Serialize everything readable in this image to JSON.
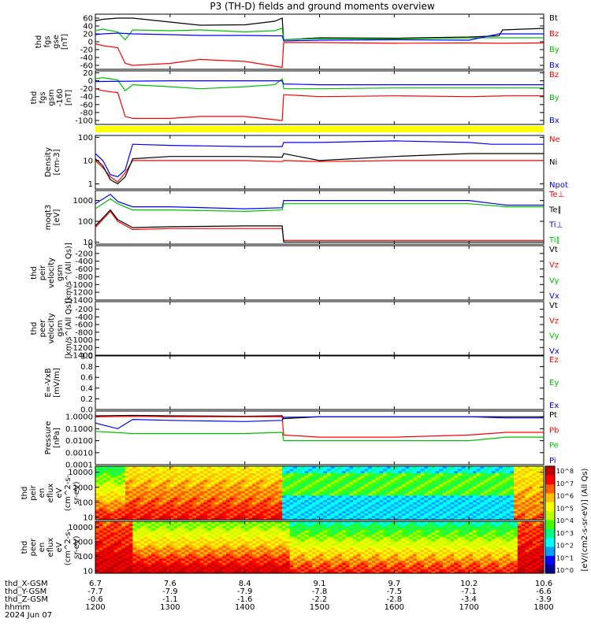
{
  "title": "P3 (TH-D) fields and ground moments overview",
  "footer": {
    "row_labels": [
      "thd_X-GSM",
      "thd_Y-GSM",
      "thd_Z-GSM",
      "hhmm",
      "2024 Jun 07"
    ],
    "x_gsm": [
      "6.7",
      "7.6",
      "8.4",
      "9.1",
      "9.7",
      "10.2",
      "10.6"
    ],
    "y_gsm": [
      "-7.7",
      "-7.9",
      "-7.9",
      "-7.8",
      "-7.5",
      "-7.1",
      "-6.6"
    ],
    "z_gsm": [
      "-0.6",
      "-1.1",
      "-1.6",
      "-2.2",
      "-2.8",
      "-3.4",
      "-3.9"
    ],
    "hhmm": [
      "1200",
      "1300",
      "1400",
      "1500",
      "1600",
      "1700",
      "1800"
    ]
  },
  "colorbar": {
    "label": "[eV/(cm2-s-sr-eV)] (All Qs)",
    "ticks": [
      "10^8",
      "10^7",
      "10^6",
      "10^5",
      "10^4",
      "10^3",
      "10^2",
      "10^1",
      "10^0"
    ],
    "colors": [
      "#000090",
      "#0000ff",
      "#00a0ff",
      "#00ffff",
      "#00ff80",
      "#40ff00",
      "#c0ff00",
      "#ffff00",
      "#ffc000",
      "#ff6000",
      "#ff0000",
      "#c00000"
    ]
  },
  "chart_data": [
    {
      "type": "line",
      "panel": "fgs_gse",
      "ylabel": [
        "thd",
        "fgs",
        "gse",
        "[nT]"
      ],
      "yticks": [
        "60",
        "40",
        "20",
        "0",
        "-20",
        "-40",
        "-60"
      ],
      "ylim": [
        -70,
        70
      ],
      "xlim": [
        1200,
        1800
      ],
      "series": [
        {
          "name": "Bt",
          "color": "#000000",
          "x": [
            1200,
            1210,
            1230,
            1250,
            1300,
            1340,
            1400,
            1440,
            1450,
            1452,
            1500,
            1600,
            1700,
            1740,
            1745,
            1800
          ],
          "y": [
            53,
            57,
            60,
            60,
            50,
            42,
            43,
            52,
            60,
            5,
            10,
            9,
            12,
            15,
            30,
            34
          ]
        },
        {
          "name": "Bz",
          "color": "#ff0000",
          "x": [
            1200,
            1210,
            1230,
            1240,
            1250,
            1300,
            1340,
            1400,
            1440,
            1450,
            1452,
            1500,
            1600,
            1700,
            1740,
            1800
          ],
          "y": [
            -5,
            -10,
            -15,
            -55,
            -60,
            -55,
            -45,
            -50,
            -62,
            -65,
            -2,
            -2,
            -4,
            -3,
            -4,
            -3
          ]
        },
        {
          "name": "By",
          "color": "#00c000",
          "x": [
            1200,
            1210,
            1230,
            1240,
            1250,
            1300,
            1340,
            1400,
            1440,
            1450,
            1452,
            1500,
            1600,
            1700,
            1740,
            1800
          ],
          "y": [
            28,
            32,
            25,
            5,
            30,
            28,
            30,
            25,
            28,
            34,
            5,
            8,
            7,
            10,
            10,
            10
          ]
        },
        {
          "name": "Bx",
          "color": "#0000ff",
          "x": [
            1200,
            1210,
            1230,
            1250,
            1300,
            1340,
            1400,
            1440,
            1450,
            1452,
            1500,
            1600,
            1700,
            1740,
            1800
          ],
          "y": [
            18,
            20,
            22,
            20,
            18,
            16,
            16,
            15,
            15,
            2,
            4,
            5,
            4,
            20,
            20
          ]
        }
      ]
    },
    {
      "type": "line",
      "panel": "fgs_gsm",
      "ylabel": [
        "thd",
        "fgs",
        "gsm",
        "-160",
        "[nT]"
      ],
      "yticks": [
        "20",
        "0",
        "-20",
        "-40",
        "-60",
        "-80",
        "-100"
      ],
      "ylim": [
        -110,
        25
      ],
      "xlim": [
        1200,
        1800
      ],
      "series": [
        {
          "name": "Bz",
          "color": "#ff0000",
          "x": [
            1200,
            1210,
            1230,
            1240,
            1250,
            1300,
            1340,
            1400,
            1440,
            1450,
            1452,
            1500,
            1600,
            1700,
            1750,
            1800
          ],
          "y": [
            -20,
            -25,
            -30,
            -90,
            -95,
            -95,
            -90,
            -90,
            -98,
            -100,
            -35,
            -40,
            -38,
            -40,
            -38,
            -38
          ]
        },
        {
          "name": "By",
          "color": "#00c000",
          "x": [
            1200,
            1210,
            1230,
            1240,
            1250,
            1300,
            1340,
            1400,
            1440,
            1450,
            1452,
            1500,
            1600,
            1700,
            1750,
            1800
          ],
          "y": [
            5,
            8,
            2,
            -25,
            -10,
            -15,
            -20,
            -15,
            -10,
            5,
            -20,
            -20,
            -18,
            -18,
            -18,
            -18
          ]
        },
        {
          "name": "Bx",
          "color": "#0000ff",
          "x": [
            1200,
            1300,
            1400,
            1450,
            1452,
            1500,
            1600,
            1700,
            1800
          ],
          "y": [
            -2,
            0,
            0,
            0,
            -8,
            -10,
            -10,
            -10,
            -10
          ]
        }
      ]
    },
    {
      "type": "line",
      "panel": "density",
      "ylabel": [
        "Density",
        "[cm-3]"
      ],
      "yticks": [
        "100",
        "10",
        "1"
      ],
      "yscale": "log",
      "ylim": [
        0.6,
        120
      ],
      "xlim": [
        1200,
        1800
      ],
      "series": [
        {
          "name": "Ne",
          "color": "#ff0000",
          "x": [
            1200,
            1210,
            1220,
            1230,
            1240,
            1250,
            1300,
            1400,
            1450,
            1452,
            1500,
            1600,
            1700,
            1730,
            1800
          ],
          "y": [
            10,
            5,
            2,
            1.2,
            3,
            10,
            10,
            10,
            9,
            10,
            9,
            10,
            10,
            10,
            10
          ]
        },
        {
          "name": "Ni",
          "color": "#000000",
          "x": [
            1200,
            1210,
            1220,
            1230,
            1240,
            1250,
            1300,
            1400,
            1450,
            1452,
            1500,
            1600,
            1700,
            1730,
            1800
          ],
          "y": [
            12,
            6,
            1.5,
            1,
            2,
            12,
            15,
            15,
            14,
            20,
            10,
            15,
            20,
            20,
            20
          ]
        },
        {
          "name": "Npot",
          "color": "#0000ff",
          "x": [
            1200,
            1210,
            1220,
            1230,
            1240,
            1250,
            1300,
            1400,
            1450,
            1452,
            1500,
            1600,
            1700,
            1730,
            1800
          ],
          "y": [
            20,
            10,
            2.5,
            2,
            4,
            50,
            45,
            40,
            40,
            60,
            60,
            70,
            60,
            50,
            50
          ]
        }
      ]
    },
    {
      "type": "line",
      "panel": "temperature",
      "ylabel": [
        "moqt3",
        "[eV]"
      ],
      "yticks": [
        "1000",
        "100",
        "10"
      ],
      "yscale": "log",
      "ylim": [
        8,
        3000
      ],
      "xlim": [
        1200,
        1800
      ],
      "series": [
        {
          "name": "Te⊥",
          "color": "#ff0000",
          "x": [
            1200,
            1220,
            1230,
            1250,
            1300,
            1400,
            1450,
            1452,
            1500,
            1600,
            1700,
            1750,
            1800
          ],
          "y": [
            50,
            300,
            100,
            40,
            45,
            45,
            45,
            12,
            12,
            12,
            12,
            12,
            12
          ]
        },
        {
          "name": "Te∥",
          "color": "#000000",
          "x": [
            1200,
            1220,
            1230,
            1250,
            1300,
            1400,
            1450,
            1452,
            1500,
            1600,
            1700,
            1750,
            1800
          ],
          "y": [
            60,
            350,
            120,
            50,
            55,
            60,
            60,
            10,
            10,
            10,
            10,
            10,
            10
          ]
        },
        {
          "name": "Ti⊥",
          "color": "#0000ff",
          "x": [
            1200,
            1220,
            1230,
            1250,
            1300,
            1400,
            1450,
            1452,
            1500,
            1600,
            1700,
            1750,
            1800
          ],
          "y": [
            700,
            2000,
            900,
            500,
            500,
            400,
            450,
            1000,
            1000,
            1000,
            1000,
            600,
            600
          ]
        },
        {
          "name": "Ti∥",
          "color": "#00c000",
          "x": [
            1200,
            1220,
            1230,
            1250,
            1300,
            1400,
            1450,
            1452,
            1500,
            1600,
            1700,
            1750,
            1800
          ],
          "y": [
            400,
            1200,
            700,
            350,
            350,
            300,
            350,
            700,
            700,
            700,
            700,
            500,
            500
          ]
        }
      ]
    },
    {
      "type": "line",
      "panel": "peir_velocity",
      "ylabel": [
        "thd",
        "peir",
        "velocity",
        "gsm",
        "[km/s^(All Qs)]"
      ],
      "yticks": [
        "0",
        "-200",
        "-400",
        "-600",
        "-800",
        "-1000",
        "-1200",
        "-1400"
      ],
      "ylim": [
        -1400,
        0
      ],
      "xlim": [
        1200,
        1800
      ],
      "series": [
        {
          "name": "Vt",
          "color": "#000000",
          "x": [],
          "y": []
        },
        {
          "name": "Vz",
          "color": "#ff0000",
          "x": [],
          "y": []
        },
        {
          "name": "Vy",
          "color": "#00c000",
          "x": [],
          "y": []
        },
        {
          "name": "Vx",
          "color": "#0000ff",
          "x": [],
          "y": []
        }
      ]
    },
    {
      "type": "line",
      "panel": "peer_velocity",
      "ylabel": [
        "thd",
        "peer",
        "velocity",
        "gsm",
        "[km/s^(All Qs)]"
      ],
      "yticks": [
        "-200",
        "-400",
        "-600",
        "-800",
        "-1000",
        "-1200",
        "-1400"
      ],
      "ylim": [
        -1400,
        0
      ],
      "xlim": [
        1200,
        1800
      ],
      "series": [
        {
          "name": "Vt",
          "color": "#000000",
          "x": [],
          "y": []
        },
        {
          "name": "Vz",
          "color": "#ff0000",
          "x": [],
          "y": []
        },
        {
          "name": "Vy",
          "color": "#00c000",
          "x": [],
          "y": []
        },
        {
          "name": "Vx",
          "color": "#0000ff",
          "x": [],
          "y": []
        }
      ]
    },
    {
      "type": "line",
      "panel": "efield",
      "ylabel": [
        "E=-VxB",
        "[mV/m]"
      ],
      "yticks": [
        "1.0",
        "0.8",
        "0.6",
        "0.4",
        "0.2",
        "0.0"
      ],
      "ylim": [
        0,
        1
      ],
      "xlim": [
        1200,
        1800
      ],
      "series": [
        {
          "name": "Ez",
          "color": "#ff0000",
          "x": [],
          "y": []
        },
        {
          "name": "Ey",
          "color": "#00c000",
          "x": [],
          "y": []
        },
        {
          "name": "Ex",
          "color": "#0000ff",
          "x": [],
          "y": []
        }
      ]
    },
    {
      "type": "line",
      "panel": "pressure",
      "ylabel": [
        "Pressure",
        "[nPa]"
      ],
      "yticks": [
        "1.0000",
        "0.1000",
        "0.0100",
        "0.0010",
        "0.0001"
      ],
      "yscale": "log",
      "ylim": [
        0.0001,
        3
      ],
      "xlim": [
        1200,
        1800
      ],
      "series": [
        {
          "name": "Pt",
          "color": "#000000",
          "x": [
            1200,
            1250,
            1300,
            1400,
            1450,
            1452,
            1500,
            1600,
            1700,
            1750,
            1800
          ],
          "y": [
            1.2,
            1.3,
            1.2,
            1.1,
            1.2,
            0.7,
            1.0,
            1.0,
            1.0,
            1.0,
            1.0
          ]
        },
        {
          "name": "Pb",
          "color": "#ff0000",
          "x": [
            1200,
            1250,
            1300,
            1400,
            1450,
            1452,
            1500,
            1600,
            1700,
            1750,
            1800
          ],
          "y": [
            1.0,
            1.1,
            1.0,
            1.0,
            1.0,
            0.03,
            0.02,
            0.02,
            0.03,
            0.05,
            0.05
          ]
        },
        {
          "name": "Pe",
          "color": "#00c000",
          "x": [
            1200,
            1250,
            1300,
            1400,
            1450,
            1452,
            1500,
            1600,
            1700,
            1750,
            1800
          ],
          "y": [
            0.06,
            0.04,
            0.04,
            0.04,
            0.05,
            0.01,
            0.01,
            0.01,
            0.01,
            0.02,
            0.02
          ]
        },
        {
          "name": "Pi",
          "color": "#0000ff",
          "x": [
            1200,
            1230,
            1250,
            1300,
            1400,
            1450,
            1452,
            1500,
            1600,
            1700,
            1750,
            1800
          ],
          "y": [
            0.3,
            0.1,
            0.6,
            0.5,
            0.4,
            0.5,
            0.9,
            1.0,
            1.0,
            1.0,
            0.8,
            0.8
          ]
        }
      ]
    },
    {
      "type": "heatmap",
      "panel": "peir_spectrogram",
      "ylabel": [
        "thd",
        "peir",
        "en",
        "eflux",
        "eV",
        "(cm^2-s-",
        "sr-eV)"
      ],
      "yticks": [
        "10000",
        "1000",
        "100",
        "10"
      ],
      "yscale": "log",
      "ylim": [
        7,
        25000
      ],
      "xlim": [
        1200,
        1800
      ]
    },
    {
      "type": "heatmap",
      "panel": "peer_spectrogram",
      "ylabel": [
        "thd",
        "peer",
        "en",
        "eflux",
        "eV",
        "(cm^2-s-",
        "sr-eV)"
      ],
      "yticks": [
        "10000",
        "1000",
        "100",
        "10"
      ],
      "yscale": "log",
      "ylim": [
        7,
        25000
      ],
      "xlim": [
        1200,
        1800
      ]
    }
  ]
}
